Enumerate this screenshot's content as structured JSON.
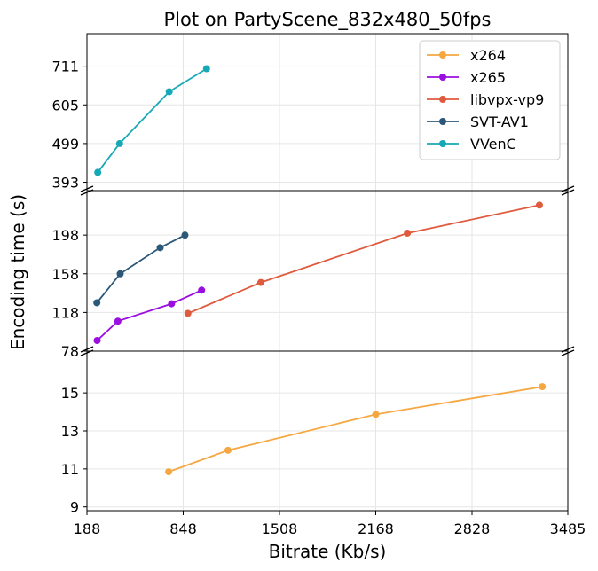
{
  "chart_data": {
    "type": "line",
    "title": "Plot on PartyScene_832x480_50fps",
    "xlabel": "Bitrate (Kb/s)",
    "ylabel": "Encoding time (s)",
    "xlim": [
      188,
      3485
    ],
    "x_ticks": [
      "188",
      "848",
      "1508",
      "2168",
      "2828",
      "3485"
    ],
    "grid": true,
    "broken_y_axis": true,
    "legend_position": "top-right",
    "panels": [
      {
        "ylim": [
          370,
          800
        ],
        "y_ticks": [
          393,
          499,
          605,
          711
        ],
        "series": [
          "VVenC"
        ]
      },
      {
        "ylim": [
          78,
          244
        ],
        "y_ticks": [
          78,
          118,
          158,
          198
        ],
        "series": [
          "x265",
          "libvpx-vp9",
          "SVT-AV1"
        ]
      },
      {
        "ylim": [
          8.8,
          17.2
        ],
        "y_ticks": [
          9,
          11,
          13,
          15
        ],
        "series": [
          "x264"
        ]
      }
    ],
    "series": [
      {
        "name": "x264",
        "color": "#f5a742",
        "points": [
          [
            748,
            10.85
          ],
          [
            1155,
            11.98
          ],
          [
            2168,
            13.87
          ],
          [
            3310,
            15.33
          ]
        ]
      },
      {
        "name": "x265",
        "color": "#9b0ee0",
        "points": [
          [
            258,
            89
          ],
          [
            400,
            109
          ],
          [
            768,
            127
          ],
          [
            974,
            141
          ]
        ]
      },
      {
        "name": "libvpx-vp9",
        "color": "#e05a3e",
        "points": [
          [
            880,
            117
          ],
          [
            1380,
            149
          ],
          [
            2385,
            200
          ],
          [
            3290,
            229
          ]
        ]
      },
      {
        "name": "SVT-AV1",
        "color": "#2c5878",
        "points": [
          [
            256,
            128
          ],
          [
            416,
            158
          ],
          [
            690,
            185
          ],
          [
            860,
            198
          ]
        ]
      },
      {
        "name": "VVenC",
        "color": "#17a8b5",
        "points": [
          [
            262,
            420
          ],
          [
            412,
            499
          ],
          [
            752,
            641
          ],
          [
            1008,
            704
          ]
        ]
      }
    ]
  }
}
